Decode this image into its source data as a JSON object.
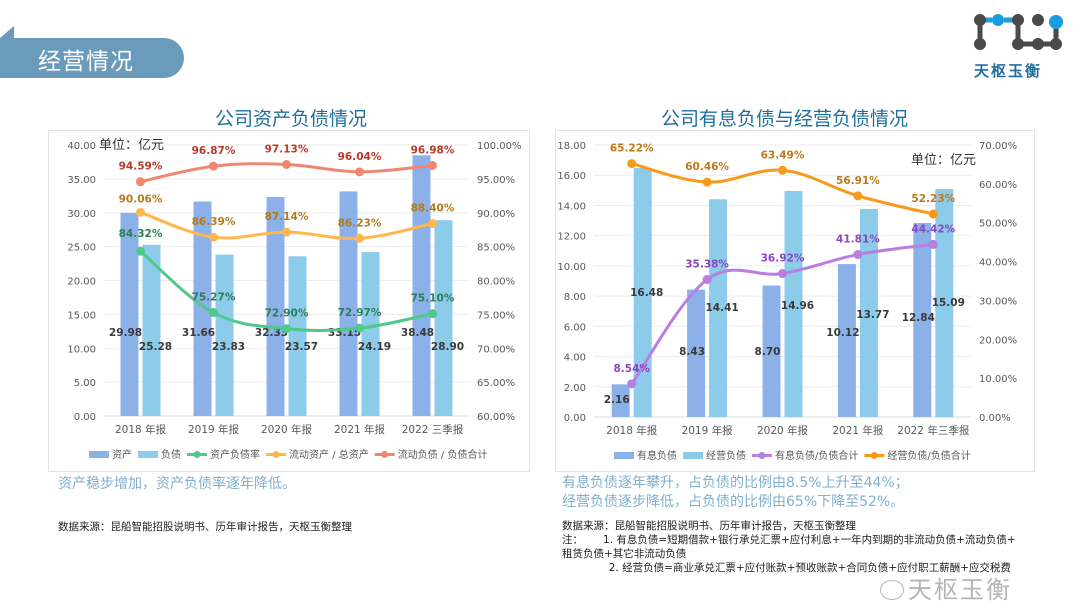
{
  "header": {
    "section_title": "经营情况",
    "logo_text": "天枢玉衡"
  },
  "colors": {
    "bar_primary": "#8cb0e8",
    "bar_secondary": "#8ccbea",
    "green_line": "#4ec98a",
    "yellow_line": "#ffb64d",
    "red_line": "#f08670",
    "purple_line": "#b87ee0",
    "orange_line": "#f79a1a",
    "title_blue": "#1f6f9e"
  },
  "chart_data": [
    {
      "type": "bar",
      "title": "公司资产负债情况",
      "unit_label": "单位：亿元",
      "categories": [
        "2018 年报",
        "2019 年报",
        "2020 年报",
        "2021 年报",
        "2022 三季报"
      ],
      "ylim": [
        0,
        40
      ],
      "yticks": [
        "0.00",
        "5.00",
        "10.00",
        "15.00",
        "20.00",
        "25.00",
        "30.00",
        "35.00",
        "40.00"
      ],
      "y2lim": [
        60,
        100
      ],
      "y2ticks": [
        "60.00%",
        "65.00%",
        "70.00%",
        "75.00%",
        "80.00%",
        "85.00%",
        "90.00%",
        "95.00%",
        "100.00%"
      ],
      "grid": true,
      "legend_position": "bottom",
      "bar_series": [
        {
          "name": "资产",
          "values": [
            29.98,
            31.66,
            32.33,
            33.15,
            38.48
          ],
          "labels": [
            "29.98",
            "31.66",
            "32.33",
            "33.15",
            "38.48"
          ]
        },
        {
          "name": "负债",
          "values": [
            25.28,
            23.83,
            23.57,
            24.19,
            28.9
          ],
          "labels": [
            "25.28",
            "23.83",
            "23.57",
            "24.19",
            "28.90"
          ]
        }
      ],
      "line_series": [
        {
          "name": "资产负债率",
          "values": [
            84.32,
            75.27,
            72.9,
            72.97,
            75.1
          ],
          "labels": [
            "84.32%",
            "75.27%",
            "72.90%",
            "72.97%",
            "75.10%"
          ]
        },
        {
          "name": "流动资产 / 总资产",
          "values": [
            90.06,
            86.39,
            87.14,
            86.23,
            88.4
          ],
          "labels": [
            "90.06%",
            "86.39%",
            "87.14%",
            "86.23%",
            "88.40%"
          ]
        },
        {
          "name": "流动负债 / 负债合计",
          "values": [
            94.59,
            96.87,
            97.13,
            96.04,
            96.98
          ],
          "labels": [
            "94.59%",
            "96.87%",
            "97.13%",
            "96.04%",
            "96.98%"
          ]
        }
      ]
    },
    {
      "type": "bar",
      "title": "公司有息负债与经营负债情况",
      "unit_label": "单位：亿元",
      "categories": [
        "2018 年报",
        "2019 年报",
        "2020 年报",
        "2021 年报",
        "2022 年三季报"
      ],
      "ylim": [
        0,
        18
      ],
      "yticks": [
        "0.00",
        "2.00",
        "4.00",
        "6.00",
        "8.00",
        "10.00",
        "12.00",
        "14.00",
        "16.00",
        "18.00"
      ],
      "y2lim": [
        0,
        70
      ],
      "y2ticks": [
        "0.00%",
        "10.00%",
        "20.00%",
        "30.00%",
        "40.00%",
        "50.00%",
        "60.00%",
        "70.00%"
      ],
      "grid": true,
      "legend_position": "bottom",
      "bar_series": [
        {
          "name": "有息负债",
          "values": [
            2.16,
            8.43,
            8.7,
            10.12,
            12.84
          ],
          "labels": [
            "2.16",
            "8.43",
            "8.70",
            "10.12",
            "12.84"
          ]
        },
        {
          "name": "经营负债",
          "values": [
            16.48,
            14.41,
            14.96,
            13.77,
            15.09
          ],
          "labels": [
            "16.48",
            "14.41",
            "14.96",
            "13.77",
            "15.09"
          ]
        }
      ],
      "line_series": [
        {
          "name": "有息负债/负债合计",
          "values": [
            8.54,
            35.38,
            36.92,
            41.81,
            44.42
          ],
          "labels": [
            "8.54%",
            "35.38%",
            "36.92%",
            "41.81%",
            "44.42%"
          ]
        },
        {
          "name": "经营负债/负债合计",
          "values": [
            65.22,
            60.46,
            63.49,
            56.91,
            52.23
          ],
          "labels": [
            "65.22%",
            "60.46%",
            "63.49%",
            "56.91%",
            "52.23%"
          ]
        }
      ]
    }
  ],
  "left_panel": {
    "summary": "资产稳步增加，资产负债率逐年降低。",
    "source": "数据来源：昆船智能招股说明书、历年审计报告，天枢玉衡整理"
  },
  "right_panel": {
    "summary_lines": [
      "有息负债逐年攀升，占负债的比例由8.5%上升至44%；",
      "经营负债逐步降低，占负债的比例由65%下降至52%。"
    ],
    "source": "数据来源：昆船智能招股说明书、历年审计报告，天枢玉衡整理",
    "notes": [
      "注：      1. 有息负债=短期借款+银行承兑汇票+应付利息+一年内到期的非流动负债+流动负债+",
      "租赁负债+其它非流动负债",
      "              2. 经营负债=商业承兑汇票+应付账款+预收账款+合同负债+应付职工薪酬+应交税费"
    ]
  },
  "watermark": "天枢玉衡"
}
